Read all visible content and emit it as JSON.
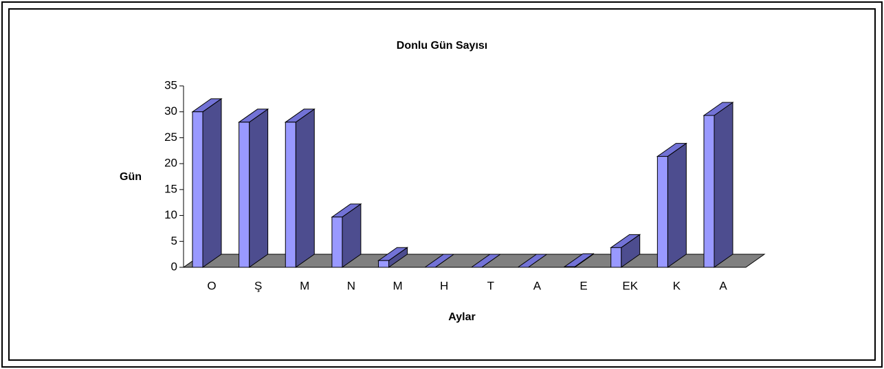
{
  "chart_data": {
    "type": "bar3d",
    "title": "Donlu Gün Sayısı",
    "x_label": "Aylar",
    "y_label": "Gün",
    "categories": [
      "O",
      "Ş",
      "M",
      "N",
      "M",
      "H",
      "T",
      "A",
      "E",
      "EK",
      "K",
      "A"
    ],
    "values": [
      30,
      28,
      28,
      9.7,
      1.3,
      0,
      0,
      0,
      0.1,
      3.8,
      21.4,
      29.3
    ],
    "color": "#9999ff",
    "side_color": "#4d4d8f",
    "top_color": "#7272d6",
    "floor_color": "#808080",
    "ylim": [
      0,
      35
    ],
    "yticks": [
      0,
      5,
      10,
      15,
      20,
      25,
      30,
      35
    ],
    "grid": false
  }
}
